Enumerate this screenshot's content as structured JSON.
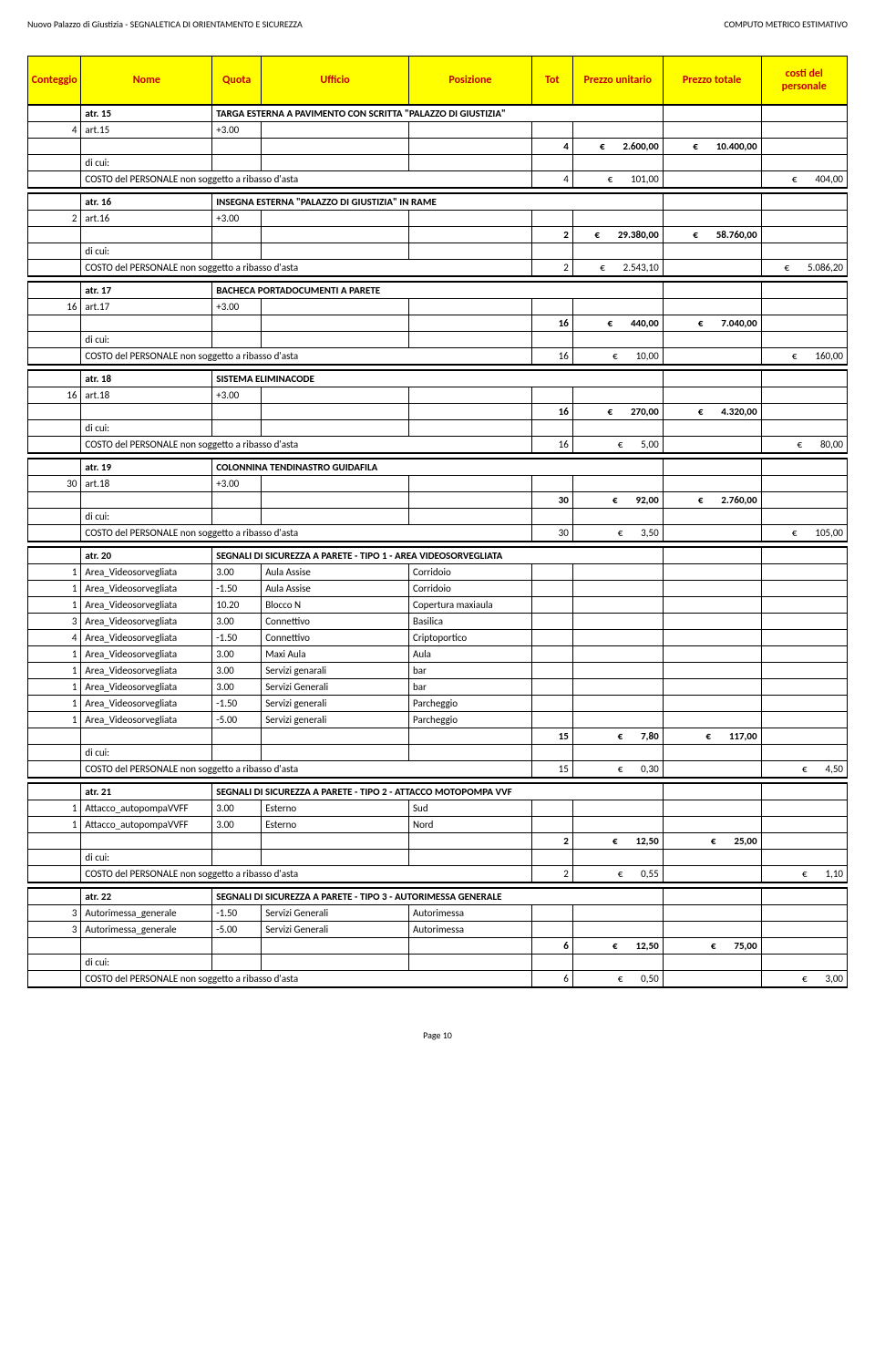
{
  "header": {
    "left": "Nuovo Palazzo di Giustizia - SEGNALETICA DI ORIENTAMENTO E SICUREZZA",
    "right": "COMPUTO METRICO ESTIMATIVO"
  },
  "columns": [
    "Conteggio",
    "Nome",
    "Quota",
    "Ufficio",
    "Posizione",
    "Tot",
    "Prezzo unitario",
    "Prezzo totale",
    "costi del personale"
  ],
  "footer": "Page 10",
  "currency": "€",
  "sections": [
    {
      "code": "atr. 15",
      "title": "TARGA ESTERNA A PAVIMENTO CON SCRITTA \"PALAZZO DI GIUSTIZIA\"",
      "qty": "4",
      "art": "art.15",
      "quota": "+3.00",
      "tot": "4",
      "unit": "2.600,00",
      "total": "10.400,00",
      "costLabel": "COSTO del PERSONALE non soggetto a ribasso d'asta",
      "dicui": "di cui:",
      "ctot": "4",
      "cunit": "101,00",
      "cpers": "404,00"
    },
    {
      "code": "atr. 16",
      "title": "INSEGNA ESTERNA \"PALAZZO DI GIUSTIZIA\" IN RAME",
      "qty": "2",
      "art": "art.16",
      "quota": "+3.00",
      "tot": "2",
      "unit": "29.380,00",
      "total": "58.760,00",
      "costLabel": "COSTO del PERSONALE non soggetto a ribasso d'asta",
      "dicui": "di cui:",
      "ctot": "2",
      "cunit": "2.543,10",
      "cpers": "5.086,20"
    },
    {
      "code": "atr. 17",
      "title": "BACHECA PORTADOCUMENTI A PARETE",
      "qty": "16",
      "art": "art.17",
      "quota": "+3.00",
      "tot": "16",
      "unit": "440,00",
      "total": "7.040,00",
      "costLabel": "COSTO del PERSONALE non soggetto a ribasso d'asta",
      "dicui": "di cui:",
      "ctot": "16",
      "cunit": "10,00",
      "cpers": "160,00"
    },
    {
      "code": "atr. 18",
      "title": "SISTEMA ELIMINACODE",
      "qty": "16",
      "art": "art.18",
      "quota": "+3.00",
      "tot": "16",
      "unit": "270,00",
      "total": "4.320,00",
      "costLabel": "COSTO del PERSONALE non soggetto a ribasso d'asta",
      "dicui": "di cui:",
      "ctot": "16",
      "cunit": "5,00",
      "cpers": "80,00"
    },
    {
      "code": "atr. 19",
      "title": "COLONNINA TENDINASTRO GUIDAFILA",
      "qty": "30",
      "art": "art.18",
      "quota": "+3.00",
      "tot": "30",
      "unit": "92,00",
      "total": "2.760,00",
      "costLabel": "COSTO del PERSONALE non soggetto a ribasso d'asta",
      "dicui": "di cui:",
      "ctot": "30",
      "cunit": "3,50",
      "cpers": "105,00"
    },
    {
      "code": "atr. 20",
      "title": "SEGNALI DI SICUREZZA A PARETE - TIPO 1 - AREA VIDEOSORVEGLIATA",
      "rows": [
        [
          "1",
          "Area_Videosorvegliata",
          "3.00",
          "Aula Assise",
          "Corridoio"
        ],
        [
          "1",
          "Area_Videosorvegliata",
          "-1.50",
          "Aula Assise",
          "Corridoio"
        ],
        [
          "1",
          "Area_Videosorvegliata",
          "10.20",
          "Blocco N",
          "Copertura maxiaula"
        ],
        [
          "3",
          "Area_Videosorvegliata",
          "3.00",
          "Connettivo",
          "Basilica"
        ],
        [
          "4",
          "Area_Videosorvegliata",
          "-1.50",
          "Connettivo",
          "Criptoportico"
        ],
        [
          "1",
          "Area_Videosorvegliata",
          "3.00",
          "Maxi Aula",
          "Aula"
        ],
        [
          "1",
          "Area_Videosorvegliata",
          "3.00",
          "Servizi genarali",
          "bar"
        ],
        [
          "1",
          "Area_Videosorvegliata",
          "3.00",
          "Servizi Generali",
          "bar"
        ],
        [
          "1",
          "Area_Videosorvegliata",
          "-1.50",
          "Servizi generali",
          "Parcheggio"
        ],
        [
          "1",
          "Area_Videosorvegliata",
          "-5.00",
          "Servizi generali",
          "Parcheggio"
        ]
      ],
      "tot": "15",
      "unit": "7,80",
      "total": "117,00",
      "costLabel": "COSTO del PERSONALE non soggetto a ribasso d'asta",
      "dicui": "di cui:",
      "ctot": "15",
      "cunit": "0,30",
      "cpers": "4,50"
    },
    {
      "code": "atr. 21",
      "title": "SEGNALI DI SICUREZZA A PARETE - TIPO 2 - ATTACCO MOTOPOMPA VVF",
      "rows": [
        [
          "1",
          "Attacco_autopompaVVFF",
          "3.00",
          "Esterno",
          "Sud"
        ],
        [
          "1",
          "Attacco_autopompaVVFF",
          "3.00",
          "Esterno",
          "Nord"
        ]
      ],
      "tot": "2",
      "unit": "12,50",
      "total": "25,00",
      "costLabel": "COSTO del PERSONALE non soggetto a ribasso d'asta",
      "dicui": "di cui:",
      "ctot": "2",
      "cunit": "0,55",
      "cpers": "1,10"
    },
    {
      "code": "atr. 22",
      "title": "SEGNALI DI SICUREZZA A PARETE - TIPO 3 - AUTORIMESSA GENERALE",
      "rows": [
        [
          "3",
          "Autorimessa_generale",
          "-1.50",
          "Servizi Generali",
          "Autorimessa"
        ],
        [
          "3",
          "Autorimessa_generale",
          "-5.00",
          "Servizi Generali",
          "Autorimessa"
        ]
      ],
      "tot": "6",
      "unit": "12,50",
      "total": "75,00",
      "costLabel": "COSTO del PERSONALE non soggetto a ribasso d'asta",
      "dicui": "di cui:",
      "ctot": "6",
      "cunit": "0,50",
      "cpers": "3,00"
    }
  ]
}
